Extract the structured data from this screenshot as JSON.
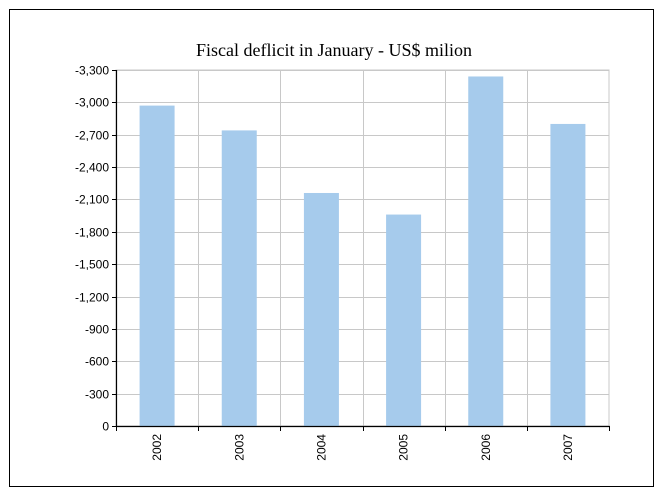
{
  "chart_data": {
    "type": "bar",
    "title": "Fiscal deflicit in January - US$ milion",
    "xlabel": "",
    "ylabel": "",
    "categories": [
      "2002",
      "2003",
      "2004",
      "2005",
      "2006",
      "2007"
    ],
    "values": [
      -2970,
      -2740,
      -2160,
      -1960,
      -3240,
      -2800
    ],
    "ylim": [
      0,
      -3300
    ],
    "y_ticks": [
      0,
      -300,
      -600,
      -900,
      -1200,
      -1500,
      -1800,
      -2100,
      -2400,
      -2700,
      -3000,
      -3300
    ],
    "y_tick_labels": [
      "0",
      "-300",
      "-600",
      "-900",
      "-1,200",
      "-1,500",
      "-1,800",
      "-2,100",
      "-2,400",
      "-2,700",
      "-3,000",
      "-3,300"
    ],
    "grid": true,
    "bar_color": "#a6cbec",
    "grid_color": "#c8c8c8"
  }
}
